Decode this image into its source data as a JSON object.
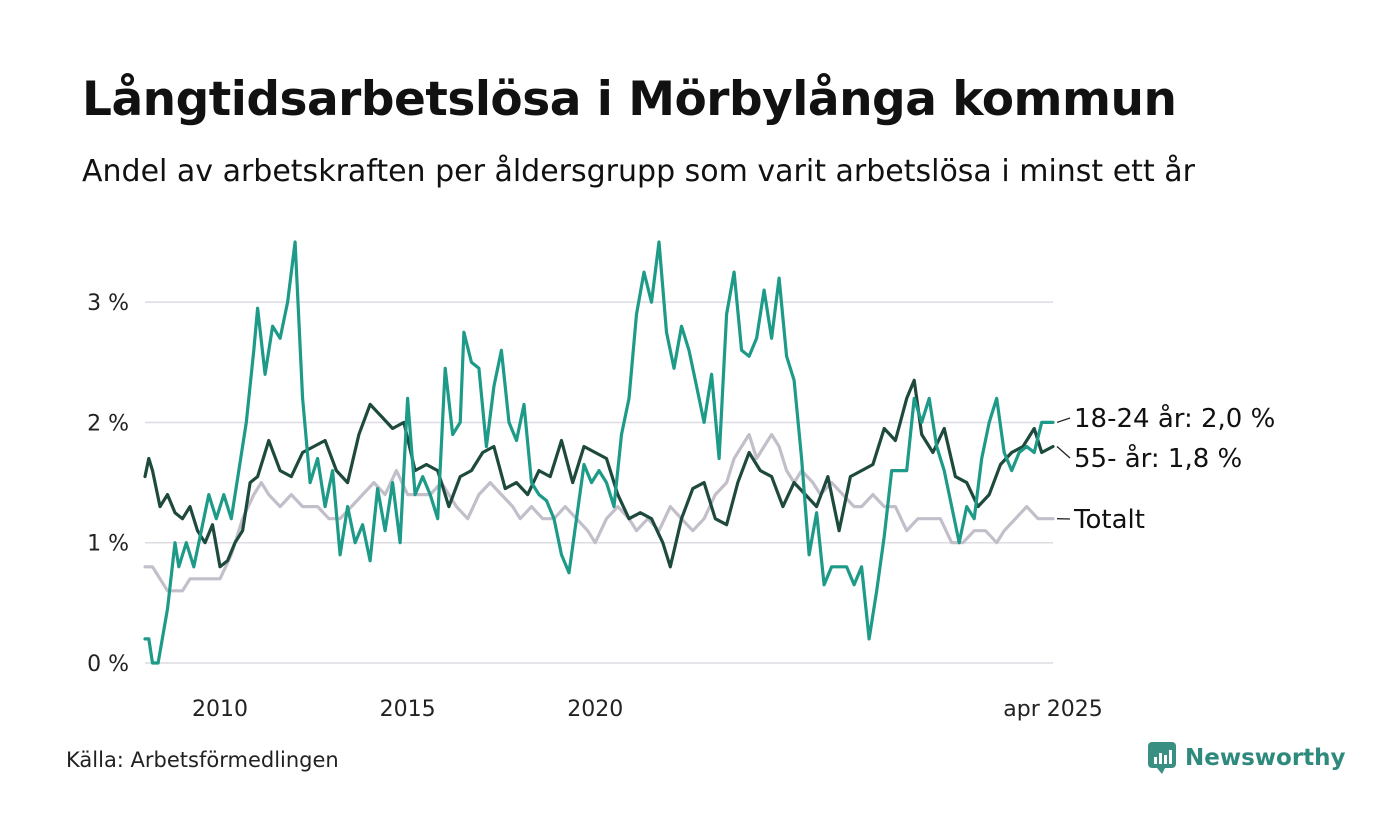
{
  "title": "Långtidsarbetslösa i Mörbylånga kommun",
  "subtitle": "Andel av arbetskraften per åldersgrupp som varit arbetslösa i minst ett år",
  "source": "Källa: Arbetsförmedlingen",
  "brand": {
    "name": "Newsworthy",
    "icon": "newsworthy-logo-icon",
    "color": "#3a8f83"
  },
  "chart_data": {
    "type": "line",
    "title": "Långtidsarbetslösa i Mörbylånga kommun",
    "subtitle": "Andel av arbetskraften per åldersgrupp som varit arbetslösa i minst ett år",
    "xlabel": "",
    "ylabel": "",
    "x_range": [
      "2008-01",
      "2025-04"
    ],
    "x_ticks": [
      "2010",
      "2015",
      "2020",
      "apr 2025"
    ],
    "x_tick_years": [
      2010,
      2015,
      2020,
      2025.25
    ],
    "ylim": [
      0,
      3.6
    ],
    "y_ticks": [
      0,
      1,
      2,
      3
    ],
    "y_tick_labels": [
      "0 %",
      "1 %",
      "2 %",
      "3 %"
    ],
    "grid": "horizontal",
    "legend": "end-of-line labels, right",
    "series": [
      {
        "name": "Totalt",
        "label": "Totalt",
        "color": "#c2bfca",
        "points": [
          [
            2008.0,
            0.8
          ],
          [
            2008.2,
            0.8
          ],
          [
            2008.4,
            0.7
          ],
          [
            2008.6,
            0.6
          ],
          [
            2009.0,
            0.6
          ],
          [
            2009.2,
            0.7
          ],
          [
            2009.6,
            0.7
          ],
          [
            2010.0,
            0.7
          ],
          [
            2010.3,
            0.9
          ],
          [
            2010.6,
            1.2
          ],
          [
            2010.9,
            1.4
          ],
          [
            2011.1,
            1.5
          ],
          [
            2011.3,
            1.4
          ],
          [
            2011.6,
            1.3
          ],
          [
            2011.9,
            1.4
          ],
          [
            2012.2,
            1.3
          ],
          [
            2012.6,
            1.3
          ],
          [
            2012.9,
            1.2
          ],
          [
            2013.2,
            1.2
          ],
          [
            2013.5,
            1.3
          ],
          [
            2013.8,
            1.4
          ],
          [
            2014.1,
            1.5
          ],
          [
            2014.4,
            1.4
          ],
          [
            2014.7,
            1.6
          ],
          [
            2015.0,
            1.4
          ],
          [
            2015.3,
            1.4
          ],
          [
            2015.6,
            1.4
          ],
          [
            2015.9,
            1.5
          ],
          [
            2016.1,
            1.4
          ],
          [
            2016.3,
            1.3
          ],
          [
            2016.6,
            1.2
          ],
          [
            2016.9,
            1.4
          ],
          [
            2017.2,
            1.5
          ],
          [
            2017.5,
            1.4
          ],
          [
            2017.8,
            1.3
          ],
          [
            2018.0,
            1.2
          ],
          [
            2018.3,
            1.3
          ],
          [
            2018.6,
            1.2
          ],
          [
            2018.9,
            1.2
          ],
          [
            2019.2,
            1.3
          ],
          [
            2019.5,
            1.2
          ],
          [
            2019.8,
            1.1
          ],
          [
            2020.0,
            1.0
          ],
          [
            2020.3,
            1.2
          ],
          [
            2020.6,
            1.3
          ],
          [
            2020.9,
            1.2
          ],
          [
            2021.1,
            1.1
          ],
          [
            2021.4,
            1.2
          ],
          [
            2021.7,
            1.1
          ],
          [
            2022.0,
            1.3
          ],
          [
            2022.3,
            1.2
          ],
          [
            2022.6,
            1.1
          ],
          [
            2022.9,
            1.2
          ],
          [
            2023.2,
            1.4
          ],
          [
            2023.5,
            1.5
          ],
          [
            2023.7,
            1.7
          ],
          [
            2023.9,
            1.8
          ],
          [
            2024.1,
            1.9
          ],
          [
            2024.3,
            1.7
          ],
          [
            2024.5,
            1.8
          ],
          [
            2024.7,
            1.9
          ],
          [
            2024.9,
            1.8
          ],
          [
            2025.1,
            1.6
          ],
          [
            2025.3,
            1.5
          ],
          [
            2025.5,
            1.6
          ],
          [
            2025.8,
            1.5
          ],
          [
            2026.0,
            1.4
          ],
          [
            2026.3,
            1.5
          ],
          [
            2026.6,
            1.4
          ],
          [
            2026.9,
            1.3
          ],
          [
            2027.1,
            1.3
          ],
          [
            2027.4,
            1.4
          ],
          [
            2027.7,
            1.3
          ],
          [
            2028.0,
            1.3
          ],
          [
            2028.3,
            1.1
          ],
          [
            2028.6,
            1.2
          ],
          [
            2028.9,
            1.2
          ],
          [
            2029.2,
            1.2
          ],
          [
            2029.5,
            1.0
          ],
          [
            2029.8,
            1.0
          ],
          [
            2030.1,
            1.1
          ],
          [
            2030.4,
            1.1
          ],
          [
            2030.7,
            1.0
          ],
          [
            2030.9,
            1.1
          ],
          [
            2031.2,
            1.2
          ],
          [
            2031.5,
            1.3
          ],
          [
            2031.8,
            1.2
          ],
          [
            2032.0,
            1.2
          ],
          [
            2032.2,
            1.2
          ]
        ]
      },
      {
        "name": "55- år",
        "label": "55- år: 1,8 %",
        "color": "#1e4a3d",
        "points": [
          [
            2008.0,
            1.55
          ],
          [
            2008.1,
            1.7
          ],
          [
            2008.2,
            1.6
          ],
          [
            2008.4,
            1.3
          ],
          [
            2008.6,
            1.4
          ],
          [
            2008.8,
            1.25
          ],
          [
            2009.0,
            1.2
          ],
          [
            2009.2,
            1.3
          ],
          [
            2009.4,
            1.1
          ],
          [
            2009.6,
            1.0
          ],
          [
            2009.8,
            1.15
          ],
          [
            2010.0,
            0.8
          ],
          [
            2010.2,
            0.85
          ],
          [
            2010.4,
            1.0
          ],
          [
            2010.6,
            1.1
          ],
          [
            2010.8,
            1.5
          ],
          [
            2011.0,
            1.55
          ],
          [
            2011.3,
            1.85
          ],
          [
            2011.6,
            1.6
          ],
          [
            2011.9,
            1.55
          ],
          [
            2012.2,
            1.75
          ],
          [
            2012.5,
            1.8
          ],
          [
            2012.8,
            1.85
          ],
          [
            2013.1,
            1.6
          ],
          [
            2013.4,
            1.5
          ],
          [
            2013.7,
            1.9
          ],
          [
            2014.0,
            2.15
          ],
          [
            2014.3,
            2.05
          ],
          [
            2014.6,
            1.95
          ],
          [
            2014.9,
            2.0
          ],
          [
            2015.2,
            1.6
          ],
          [
            2015.5,
            1.65
          ],
          [
            2015.8,
            1.6
          ],
          [
            2016.1,
            1.3
          ],
          [
            2016.4,
            1.55
          ],
          [
            2016.7,
            1.6
          ],
          [
            2017.0,
            1.75
          ],
          [
            2017.3,
            1.8
          ],
          [
            2017.6,
            1.45
          ],
          [
            2017.9,
            1.5
          ],
          [
            2018.2,
            1.4
          ],
          [
            2018.5,
            1.6
          ],
          [
            2018.8,
            1.55
          ],
          [
            2019.1,
            1.85
          ],
          [
            2019.4,
            1.5
          ],
          [
            2019.7,
            1.8
          ],
          [
            2020.0,
            1.75
          ],
          [
            2020.3,
            1.7
          ],
          [
            2020.6,
            1.4
          ],
          [
            2020.9,
            1.2
          ],
          [
            2021.2,
            1.25
          ],
          [
            2021.5,
            1.2
          ],
          [
            2021.8,
            1.0
          ],
          [
            2022.0,
            0.8
          ],
          [
            2022.3,
            1.2
          ],
          [
            2022.6,
            1.45
          ],
          [
            2022.9,
            1.5
          ],
          [
            2023.2,
            1.2
          ],
          [
            2023.5,
            1.15
          ],
          [
            2023.8,
            1.5
          ],
          [
            2024.1,
            1.75
          ],
          [
            2024.4,
            1.6
          ],
          [
            2024.7,
            1.55
          ],
          [
            2025.0,
            1.3
          ],
          [
            2025.3,
            1.5
          ],
          [
            2025.6,
            1.4
          ],
          [
            2025.9,
            1.3
          ],
          [
            2026.2,
            1.55
          ],
          [
            2026.5,
            1.1
          ],
          [
            2026.8,
            1.55
          ],
          [
            2027.1,
            1.6
          ],
          [
            2027.4,
            1.65
          ],
          [
            2027.7,
            1.95
          ],
          [
            2028.0,
            1.85
          ],
          [
            2028.3,
            2.2
          ],
          [
            2028.5,
            2.35
          ],
          [
            2028.7,
            1.9
          ],
          [
            2029.0,
            1.75
          ],
          [
            2029.3,
            1.95
          ],
          [
            2029.6,
            1.55
          ],
          [
            2029.9,
            1.5
          ],
          [
            2030.2,
            1.3
          ],
          [
            2030.5,
            1.4
          ],
          [
            2030.8,
            1.65
          ],
          [
            2031.1,
            1.75
          ],
          [
            2031.4,
            1.8
          ],
          [
            2031.7,
            1.95
          ],
          [
            2031.9,
            1.75
          ],
          [
            2032.2,
            1.8
          ]
        ]
      },
      {
        "name": "18-24 år",
        "label": "18-24 år: 2,0 %",
        "color": "#1e9a88",
        "points": [
          [
            2008.0,
            0.2
          ],
          [
            2008.1,
            0.2
          ],
          [
            2008.2,
            0.0
          ],
          [
            2008.35,
            0.0
          ],
          [
            2008.6,
            0.45
          ],
          [
            2008.8,
            1.0
          ],
          [
            2008.9,
            0.8
          ],
          [
            2009.1,
            1.0
          ],
          [
            2009.3,
            0.8
          ],
          [
            2009.5,
            1.1
          ],
          [
            2009.7,
            1.4
          ],
          [
            2009.9,
            1.2
          ],
          [
            2010.1,
            1.4
          ],
          [
            2010.3,
            1.2
          ],
          [
            2010.5,
            1.6
          ],
          [
            2010.7,
            2.0
          ],
          [
            2010.9,
            2.6
          ],
          [
            2011.0,
            2.95
          ],
          [
            2011.2,
            2.4
          ],
          [
            2011.4,
            2.8
          ],
          [
            2011.6,
            2.7
          ],
          [
            2011.8,
            3.0
          ],
          [
            2012.0,
            3.5
          ],
          [
            2012.2,
            2.2
          ],
          [
            2012.4,
            1.5
          ],
          [
            2012.6,
            1.7
          ],
          [
            2012.8,
            1.3
          ],
          [
            2013.0,
            1.6
          ],
          [
            2013.2,
            0.9
          ],
          [
            2013.4,
            1.3
          ],
          [
            2013.6,
            1.0
          ],
          [
            2013.8,
            1.15
          ],
          [
            2014.0,
            0.85
          ],
          [
            2014.2,
            1.45
          ],
          [
            2014.4,
            1.1
          ],
          [
            2014.6,
            1.5
          ],
          [
            2014.8,
            1.0
          ],
          [
            2015.0,
            2.2
          ],
          [
            2015.2,
            1.4
          ],
          [
            2015.4,
            1.55
          ],
          [
            2015.6,
            1.4
          ],
          [
            2015.8,
            1.2
          ],
          [
            2016.0,
            2.45
          ],
          [
            2016.2,
            1.9
          ],
          [
            2016.4,
            2.0
          ],
          [
            2016.5,
            2.75
          ],
          [
            2016.7,
            2.5
          ],
          [
            2016.9,
            2.45
          ],
          [
            2017.1,
            1.8
          ],
          [
            2017.3,
            2.3
          ],
          [
            2017.5,
            2.6
          ],
          [
            2017.7,
            2.0
          ],
          [
            2017.9,
            1.85
          ],
          [
            2018.1,
            2.15
          ],
          [
            2018.3,
            1.5
          ],
          [
            2018.5,
            1.4
          ],
          [
            2018.7,
            1.35
          ],
          [
            2018.9,
            1.2
          ],
          [
            2019.1,
            0.9
          ],
          [
            2019.3,
            0.75
          ],
          [
            2019.5,
            1.2
          ],
          [
            2019.7,
            1.65
          ],
          [
            2019.9,
            1.5
          ],
          [
            2020.1,
            1.6
          ],
          [
            2020.3,
            1.5
          ],
          [
            2020.5,
            1.3
          ],
          [
            2020.7,
            1.9
          ],
          [
            2020.9,
            2.2
          ],
          [
            2021.1,
            2.9
          ],
          [
            2021.3,
            3.25
          ],
          [
            2021.5,
            3.0
          ],
          [
            2021.7,
            3.5
          ],
          [
            2021.9,
            2.75
          ],
          [
            2022.1,
            2.45
          ],
          [
            2022.3,
            2.8
          ],
          [
            2022.5,
            2.6
          ],
          [
            2022.7,
            2.3
          ],
          [
            2022.9,
            2.0
          ],
          [
            2023.1,
            2.4
          ],
          [
            2023.3,
            1.7
          ],
          [
            2023.5,
            2.9
          ],
          [
            2023.7,
            3.25
          ],
          [
            2023.9,
            2.6
          ],
          [
            2024.1,
            2.55
          ],
          [
            2024.3,
            2.7
          ],
          [
            2024.5,
            3.1
          ],
          [
            2024.7,
            2.7
          ],
          [
            2024.9,
            3.2
          ],
          [
            2025.1,
            2.55
          ],
          [
            2025.3,
            2.35
          ],
          [
            2025.5,
            1.7
          ],
          [
            2025.7,
            0.9
          ],
          [
            2025.9,
            1.25
          ],
          [
            2026.1,
            0.65
          ],
          [
            2026.3,
            0.8
          ],
          [
            2026.5,
            0.8
          ],
          [
            2026.7,
            0.8
          ],
          [
            2026.9,
            0.65
          ],
          [
            2027.1,
            0.8
          ],
          [
            2027.3,
            0.2
          ],
          [
            2027.5,
            0.6
          ],
          [
            2027.7,
            1.05
          ],
          [
            2027.9,
            1.6
          ],
          [
            2028.1,
            1.6
          ],
          [
            2028.3,
            1.6
          ],
          [
            2028.5,
            2.2
          ],
          [
            2028.7,
            2.0
          ],
          [
            2028.9,
            2.2
          ],
          [
            2029.1,
            1.8
          ],
          [
            2029.3,
            1.6
          ],
          [
            2029.5,
            1.3
          ],
          [
            2029.7,
            1.0
          ],
          [
            2029.9,
            1.3
          ],
          [
            2030.1,
            1.2
          ],
          [
            2030.3,
            1.7
          ],
          [
            2030.5,
            2.0
          ],
          [
            2030.7,
            2.2
          ],
          [
            2030.9,
            1.75
          ],
          [
            2031.1,
            1.6
          ],
          [
            2031.3,
            1.75
          ],
          [
            2031.5,
            1.8
          ],
          [
            2031.7,
            1.75
          ],
          [
            2031.9,
            2.0
          ],
          [
            2032.2,
            2.0
          ]
        ]
      }
    ]
  }
}
